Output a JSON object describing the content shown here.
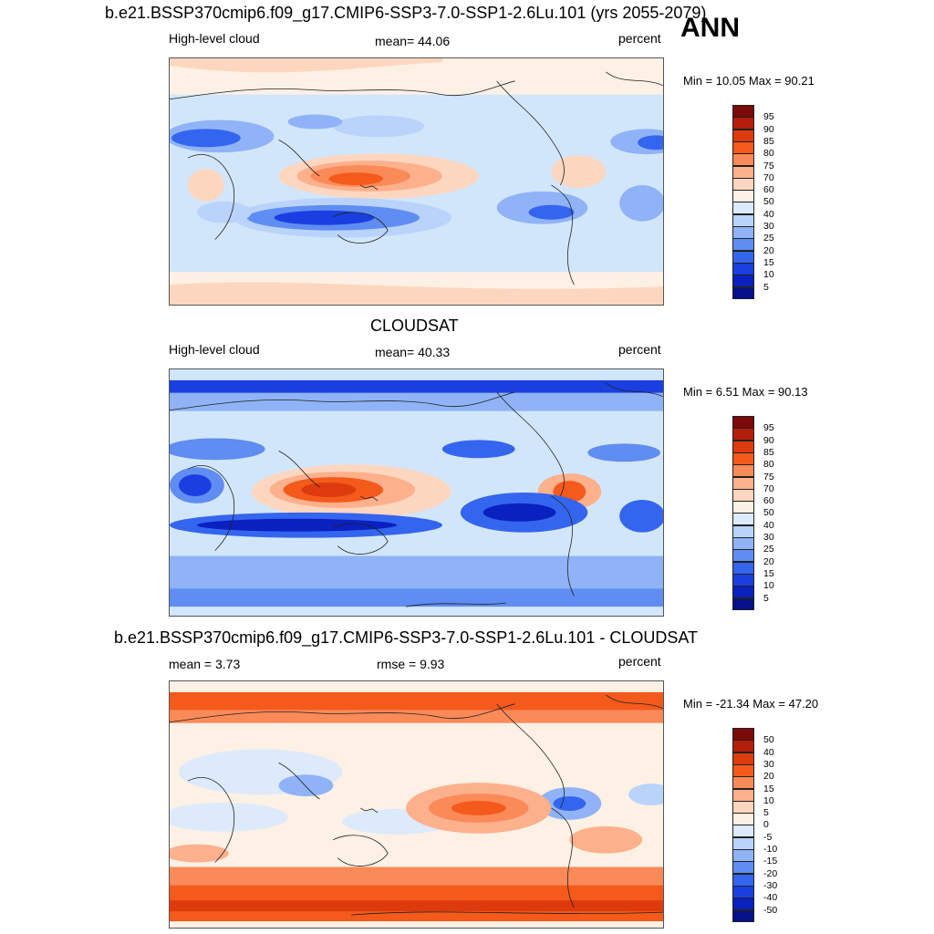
{
  "ann_label": "ANN",
  "panels": [
    {
      "title": "b.e21.BSSP370cmip6.f09_g17.CMIP6-SSP3-7.0-SSP1-2.6Lu.101 (yrs 2055-2079)",
      "left_label": "High-level cloud",
      "center_label": "mean=  44.06",
      "right_label": "percent",
      "minmax": "Min =  10.05 Max =  90.21",
      "colorbar_labels": [
        "95",
        "90",
        "85",
        "80",
        "75",
        "70",
        "60",
        "50",
        "40",
        "30",
        "25",
        "20",
        "15",
        "10",
        "5"
      ],
      "colorbar_colors": [
        "#7b0a0a",
        "#b51d0b",
        "#dd3a0e",
        "#f45a1c",
        "#fb8a59",
        "#fdb08c",
        "#fdd6bf",
        "#fdf0e4",
        "#dceafb",
        "#b9d3fa",
        "#8fb3f6",
        "#5f8df1",
        "#3465ee",
        "#1a3fe0",
        "#0a20bf",
        "#06108a"
      ],
      "chart_data": {
        "type": "heatmap",
        "title": "b.e21.BSSP370cmip6.f09_g17.CMIP6-SSP3-7.0-SSP1-2.6Lu.101 (yrs 2055-2079)",
        "variable": "High-level cloud",
        "units": "percent",
        "mean": 44.06,
        "min": 10.05,
        "max": 90.21,
        "levels": [
          5,
          10,
          15,
          20,
          25,
          30,
          40,
          50,
          60,
          70,
          75,
          80,
          85,
          90,
          95
        ]
      }
    },
    {
      "title": "CLOUDSAT",
      "left_label": "High-level cloud",
      "center_label": "mean=  40.33",
      "right_label": "percent",
      "minmax": "Min =   6.51 Max =  90.13",
      "colorbar_labels": [
        "95",
        "90",
        "85",
        "80",
        "75",
        "70",
        "60",
        "50",
        "40",
        "30",
        "25",
        "20",
        "15",
        "10",
        "5"
      ],
      "colorbar_colors": [
        "#7b0a0a",
        "#b51d0b",
        "#dd3a0e",
        "#f45a1c",
        "#fb8a59",
        "#fdb08c",
        "#fdd6bf",
        "#fdf0e4",
        "#dceafb",
        "#b9d3fa",
        "#8fb3f6",
        "#5f8df1",
        "#3465ee",
        "#1a3fe0",
        "#0a20bf",
        "#06108a"
      ],
      "chart_data": {
        "type": "heatmap",
        "title": "CLOUDSAT",
        "variable": "High-level cloud",
        "units": "percent",
        "mean": 40.33,
        "min": 6.51,
        "max": 90.13,
        "levels": [
          5,
          10,
          15,
          20,
          25,
          30,
          40,
          50,
          60,
          70,
          75,
          80,
          85,
          90,
          95
        ]
      }
    },
    {
      "title": "b.e21.BSSP370cmip6.f09_g17.CMIP6-SSP3-7.0-SSP1-2.6Lu.101 - CLOUDSAT",
      "left_label": "mean =   3.73",
      "center_label": "rmse =   9.93",
      "right_label": "percent",
      "minmax": "Min = -21.34 Max =  47.20",
      "colorbar_labels": [
        "50",
        "40",
        "30",
        "20",
        "15",
        "10",
        "5",
        "0",
        "-5",
        "-10",
        "-15",
        "-20",
        "-30",
        "-40",
        "-50"
      ],
      "colorbar_colors": [
        "#7b0a0a",
        "#b51d0b",
        "#dd3a0e",
        "#f45a1c",
        "#fb8a59",
        "#fdb08c",
        "#fdd6bf",
        "#fdf0e4",
        "#dceafb",
        "#b9d3fa",
        "#8fb3f6",
        "#5f8df1",
        "#3465ee",
        "#1a3fe0",
        "#0a20bf",
        "#06108a"
      ],
      "chart_data": {
        "type": "heatmap",
        "title": "b.e21.BSSP370cmip6.f09_g17.CMIP6-SSP3-7.0-SSP1-2.6Lu.101 - CLOUDSAT",
        "units": "percent",
        "mean": 3.73,
        "rmse": 9.93,
        "min": -21.34,
        "max": 47.2,
        "levels": [
          -50,
          -40,
          -30,
          -20,
          -15,
          -10,
          -5,
          0,
          5,
          10,
          15,
          20,
          30,
          40,
          50
        ]
      }
    }
  ]
}
